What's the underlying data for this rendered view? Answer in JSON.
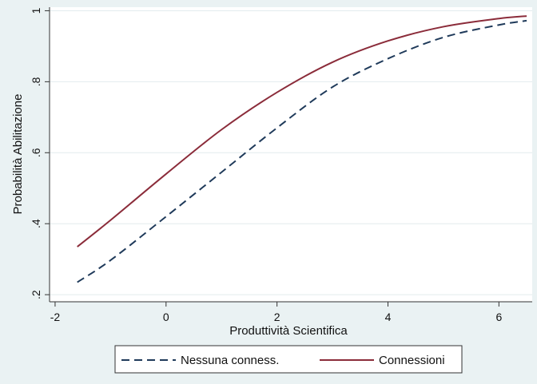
{
  "chart_data": {
    "type": "line",
    "title": "",
    "xlabel": "Produttività Scientifica",
    "ylabel": "Probabilità Abilitazione",
    "xlim": [
      -2.1,
      6.6
    ],
    "ylim": [
      0.18,
      1.01
    ],
    "xticks": [
      -2,
      0,
      2,
      4,
      6
    ],
    "xtick_labels": [
      "-2",
      "0",
      "2",
      "4",
      "6"
    ],
    "yticks": [
      0.2,
      0.4,
      0.6,
      0.8,
      1
    ],
    "ytick_labels": [
      ".2",
      ".4",
      ".6",
      ".8",
      "1"
    ],
    "grid": "horizontal",
    "legend_position": "bottom",
    "series": [
      {
        "name": "Nessuna conness.",
        "style": "dashed",
        "color": "#1f3a5a",
        "x": [
          -1.6,
          -1.0,
          0.0,
          1.0,
          2.0,
          3.0,
          4.0,
          5.0,
          6.0,
          6.5
        ],
        "y": [
          0.235,
          0.297,
          0.42,
          0.545,
          0.67,
          0.785,
          0.865,
          0.925,
          0.96,
          0.972
        ]
      },
      {
        "name": "Connessioni",
        "style": "solid",
        "color": "#8b2c3a",
        "x": [
          -1.6,
          -1.0,
          0.0,
          1.0,
          2.0,
          3.0,
          4.0,
          5.0,
          6.0,
          6.5
        ],
        "y": [
          0.335,
          0.41,
          0.54,
          0.665,
          0.77,
          0.855,
          0.915,
          0.955,
          0.978,
          0.985
        ]
      }
    ]
  }
}
